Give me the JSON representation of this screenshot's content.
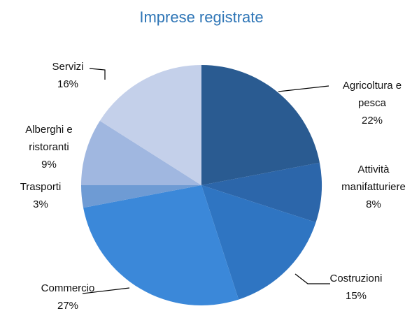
{
  "chart_data": {
    "type": "pie",
    "title": "Imprese registrate",
    "categories": [
      "Agricoltura e pesca",
      "Attività manifatturiere",
      "Costruzioni",
      "Commercio",
      "Trasporti",
      "Alberghi e ristoranti",
      "Servizi"
    ],
    "values": [
      22,
      8,
      15,
      27,
      3,
      9,
      16
    ],
    "value_labels": [
      "22%",
      "8%",
      "15%",
      "27%",
      "3%",
      "9%",
      "16%"
    ],
    "colors": [
      "#2a5b91",
      "#2c66aa",
      "#2f75c2",
      "#3b88d9",
      "#6e9bd4",
      "#a0b7e0",
      "#c4d0ea"
    ]
  }
}
